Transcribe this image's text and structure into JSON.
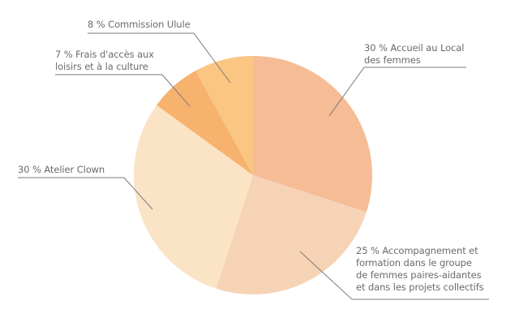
{
  "chart_data": {
    "type": "pie",
    "title": "",
    "start_angle_deg": 0,
    "direction": "clockwise",
    "center": [
      312,
      216
    ],
    "radius": 147,
    "legend": "none (leader-line labels)",
    "slices": [
      {
        "label": "Accueil au Local des femmes",
        "value": 30,
        "display": "30 % Accueil au Local\ndes femmes",
        "color": "#f5bc95"
      },
      {
        "label": "Accompagnement et formation dans le groupe de femmes paires-aidantes et dans les projets collectifs",
        "value": 25,
        "display": "25 % Accompagnement et\nformation dans le groupe\nde femmes paires-aidantes\net dans les projets collectifs",
        "color": "#f7d3b6"
      },
      {
        "label": "Atelier Clown",
        "value": 30,
        "display": "30 % Atelier Clown",
        "color": "#fbe3c6"
      },
      {
        "label": "Frais d'accès aux loisirs et à la culture",
        "value": 7,
        "display": "7 % Frais d'accès aux\nloisirs et à la culture",
        "color": "#f7b26e"
      },
      {
        "label": "Commission Ulule",
        "value": 8,
        "display": "8 % Commission Ulule",
        "color": "#fac682"
      }
    ]
  },
  "labels": {
    "accueil": "30 % Accueil au Local\ndes femmes",
    "accompagnement": "25 % Accompagnement et\nformation dans le groupe\nde femmes paires-aidantes\net dans les projets collectifs",
    "clown": "30 % Atelier Clown",
    "frais": "7 % Frais d'accès aux\nloisirs et à la culture",
    "commission": "8 % Commission Ulule"
  },
  "leader_color": "#7a7a7a"
}
